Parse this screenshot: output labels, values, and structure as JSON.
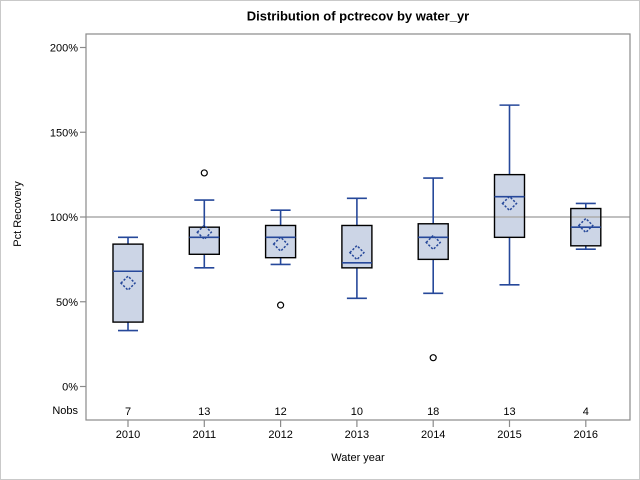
{
  "chart_data": {
    "type": "boxplot",
    "title": "Distribution of pctrecov by water_yr",
    "xlabel": "Water year",
    "ylabel": "Pct Recovery",
    "nobs_label": "Nobs",
    "y_ticks": [
      0,
      50,
      100,
      150,
      200
    ],
    "y_tick_labels": [
      "0%",
      "50%",
      "100%",
      "150%",
      "200%"
    ],
    "ylim": [
      -20,
      208
    ],
    "reference_line": 100,
    "grid": "off",
    "legend": "none",
    "categories": [
      "2010",
      "2011",
      "2012",
      "2013",
      "2014",
      "2015",
      "2016"
    ],
    "boxes": [
      {
        "year": "2010",
        "nobs": 7,
        "whisker_low": 33,
        "q1": 38,
        "median": 68,
        "q3": 84,
        "whisker_high": 88,
        "mean": 61,
        "outliers": []
      },
      {
        "year": "2011",
        "nobs": 13,
        "whisker_low": 70,
        "q1": 78,
        "median": 88,
        "q3": 94,
        "whisker_high": 110,
        "mean": 91,
        "outliers": [
          126
        ]
      },
      {
        "year": "2012",
        "nobs": 12,
        "whisker_low": 72,
        "q1": 76,
        "median": 88,
        "q3": 95,
        "whisker_high": 104,
        "mean": 84,
        "outliers": [
          48
        ]
      },
      {
        "year": "2013",
        "nobs": 10,
        "whisker_low": 52,
        "q1": 70,
        "median": 73,
        "q3": 95,
        "whisker_high": 111,
        "mean": 79,
        "outliers": []
      },
      {
        "year": "2014",
        "nobs": 18,
        "whisker_low": 55,
        "q1": 75,
        "median": 88,
        "q3": 96,
        "whisker_high": 123,
        "mean": 85,
        "outliers": [
          17
        ]
      },
      {
        "year": "2015",
        "nobs": 13,
        "whisker_low": 60,
        "q1": 88,
        "median": 112,
        "q3": 125,
        "whisker_high": 166,
        "mean": 108,
        "outliers": []
      },
      {
        "year": "2016",
        "nobs": 4,
        "whisker_low": 81,
        "q1": 83,
        "median": 94,
        "q3": 105,
        "whisker_high": 108,
        "mean": 95,
        "outliers": []
      }
    ]
  },
  "colors": {
    "box_fill": "#ccd5e6",
    "box_border": "#000000",
    "blue_line": "#26489a",
    "reference_line": "#ababab",
    "frame": "#8a8a8a",
    "outlier_stroke": "#000000",
    "background": "#ffffff",
    "outer_border": "#c9c9c9"
  }
}
